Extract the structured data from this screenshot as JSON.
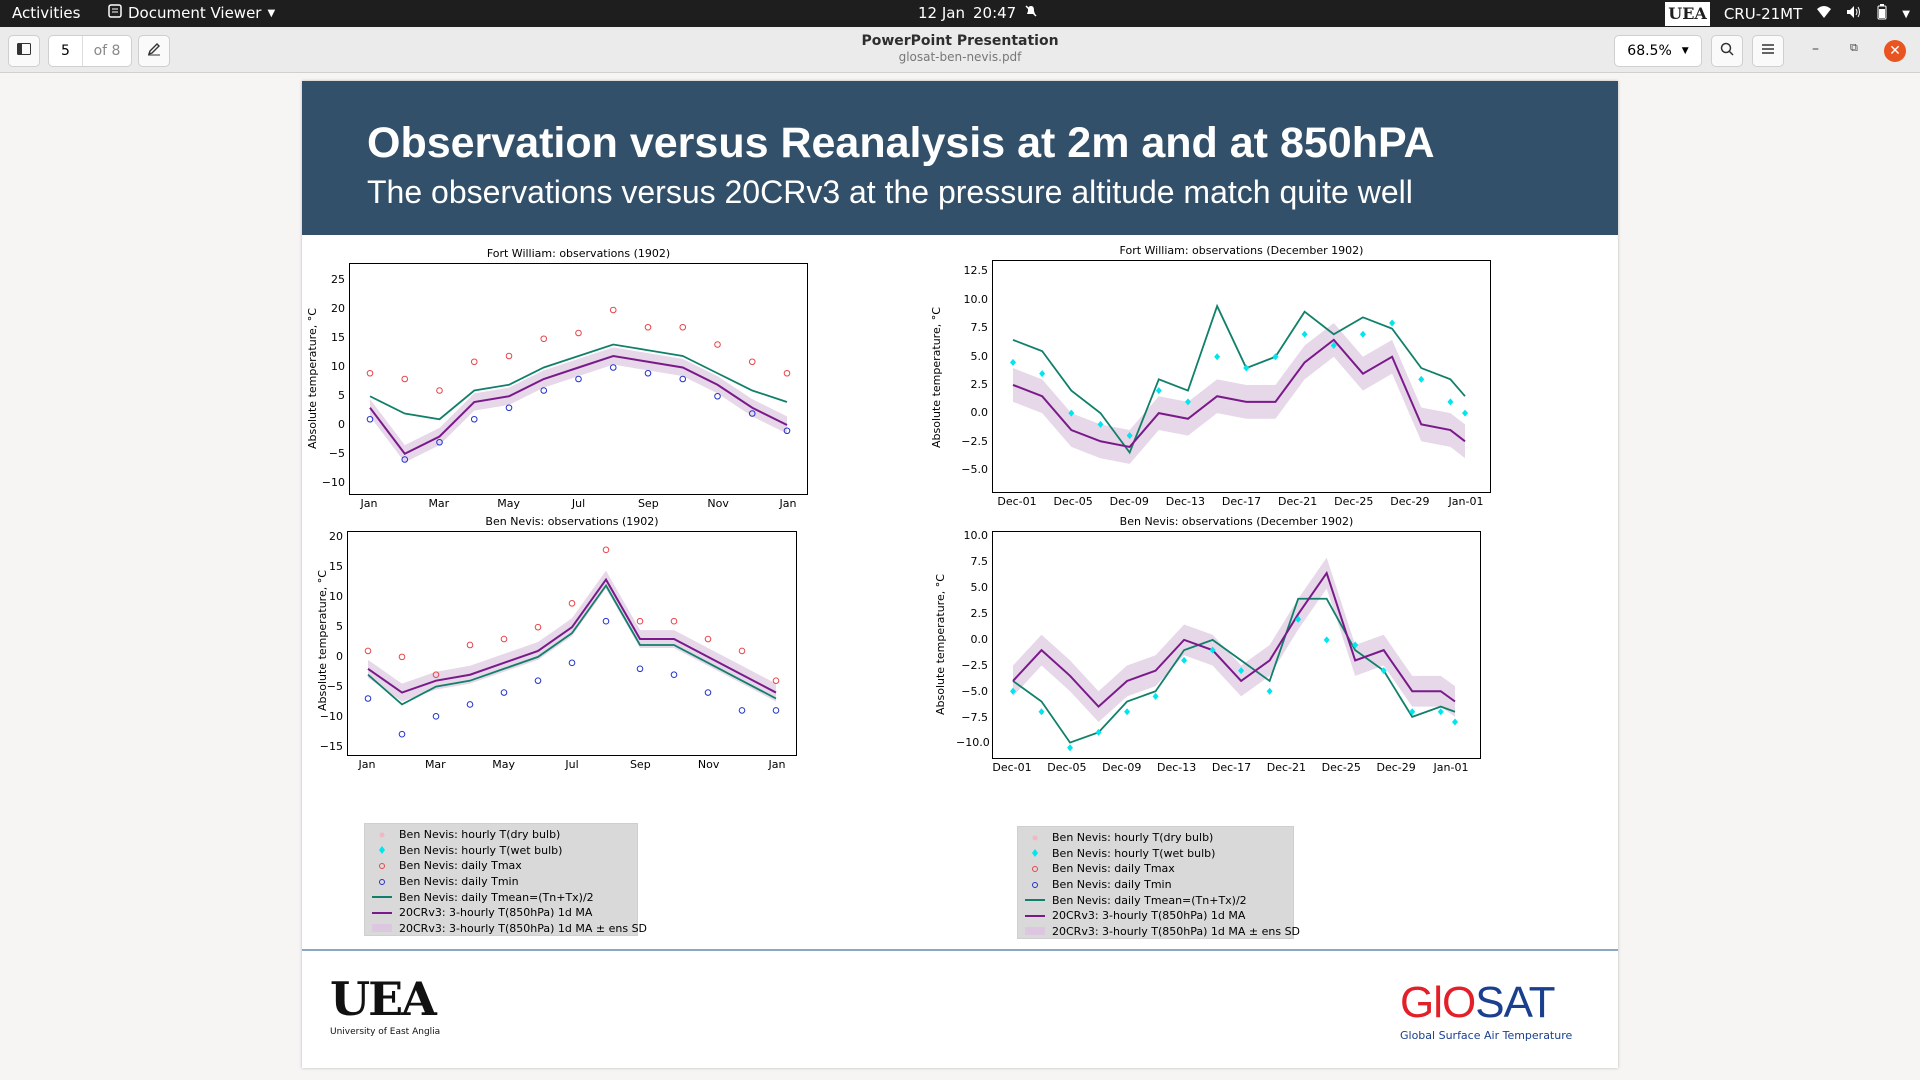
{
  "system_bar": {
    "activities": "Activities",
    "app_name": "Document Viewer",
    "date": "12 Jan",
    "time": "20:47",
    "uea_badge": "UEA",
    "hostname": "CRU-21MT"
  },
  "header": {
    "page_current": "5",
    "page_total": "of 8",
    "doc_title": "PowerPoint Presentation",
    "doc_file": "glosat-ben-nevis.pdf",
    "zoom": "68.5%"
  },
  "slide": {
    "title": "Observation versus Reanalysis at 2m and at 850hPA",
    "subtitle": "The observations versus 20CRv3 at the pressure altitude match quite well",
    "uea_logo": "UEA",
    "uea_name": "University of East Anglia",
    "glosat_logo": "GlOSAT",
    "glosat_name": "Global Surface Air Temperature"
  },
  "legend": {
    "items": [
      "Ben Nevis: hourly T(dry bulb)",
      "Ben Nevis: hourly T(wet bulb)",
      "Ben Nevis: daily Tmax",
      "Ben Nevis: daily Tmin",
      "Ben Nevis: daily Tmean=(Tn+Tx)/2",
      "20CRv3: 3-hourly T(850hPa) 1d MA",
      "20CRv3: 3-hourly T(850hPa) 1d MA ± ens SD"
    ]
  },
  "colors": {
    "banner": "#33506a",
    "dry_bulb": "#f4b6c2",
    "wet_bulb": "#00e5ee",
    "tmax": "#e8454a",
    "tmin": "#2233cc",
    "tmean": "#11806a",
    "reanalysis": "#7a1a8a",
    "ens_sd": "#dcc6e0"
  },
  "chart_data": [
    {
      "type": "line",
      "title": "Fort William: observations (1902)",
      "ylabel": "Absolute temperature, °C",
      "xlabel": "",
      "ylim": [
        -12,
        28
      ],
      "yticks": [
        "25",
        "20",
        "15",
        "10",
        "5",
        "0",
        "−5",
        "−10"
      ],
      "xticks": [
        "Jan",
        "Mar",
        "May",
        "Jul",
        "Sep",
        "Nov",
        "Jan"
      ],
      "x": [
        0,
        1,
        2,
        3,
        4,
        5,
        6,
        7,
        8,
        9,
        10,
        11,
        12
      ],
      "series": [
        {
          "name": "Ben Nevis: daily Tmax",
          "values": [
            9,
            8,
            6,
            11,
            12,
            15,
            16,
            20,
            17,
            17,
            14,
            11,
            9
          ]
        },
        {
          "name": "Ben Nevis: daily Tmean=(Tn+Tx)/2",
          "values": [
            5,
            2,
            1,
            6,
            7,
            10,
            12,
            14,
            13,
            12,
            9,
            6,
            4
          ]
        },
        {
          "name": "Ben Nevis: daily Tmin",
          "values": [
            1,
            -6,
            -3,
            1,
            3,
            6,
            8,
            10,
            9,
            8,
            5,
            2,
            -1
          ]
        },
        {
          "name": "20CRv3: 3-hourly T(850hPa) 1d MA",
          "values": [
            3,
            -5,
            -2,
            4,
            5,
            8,
            10,
            12,
            11,
            10,
            7,
            3,
            0
          ]
        }
      ],
      "grid": false
    },
    {
      "type": "line",
      "title": "Fort William: observations (December 1902)",
      "ylabel": "Absolute temperature, °C",
      "xlabel": "",
      "ylim": [
        -7,
        13.5
      ],
      "yticks": [
        "12.5",
        "10.0",
        "7.5",
        "5.0",
        "2.5",
        "0.0",
        "−2.5",
        "−5.0"
      ],
      "xticks": [
        "Dec-01",
        "Dec-05",
        "Dec-09",
        "Dec-13",
        "Dec-17",
        "Dec-21",
        "Dec-25",
        "Dec-29",
        "Jan-01"
      ],
      "x": [
        1,
        3,
        5,
        7,
        9,
        11,
        13,
        15,
        17,
        19,
        21,
        23,
        25,
        27,
        29,
        31,
        32
      ],
      "series": [
        {
          "name": "Ben Nevis: daily Tmean=(Tn+Tx)/2",
          "values": [
            6.5,
            5.5,
            2,
            0,
            -3.5,
            3,
            2,
            9.5,
            4,
            5,
            9,
            7,
            8.5,
            7.5,
            4,
            3,
            1.5
          ]
        },
        {
          "name": "20CRv3: 3-hourly T(850hPa) 1d MA",
          "values": [
            2.5,
            1.5,
            -1.5,
            -2.5,
            -3,
            0,
            -0.5,
            1.5,
            1,
            1,
            4.5,
            6.5,
            3.5,
            5,
            -1,
            -1.5,
            -2.5
          ]
        },
        {
          "name": "Ben Nevis: hourly T(wet bulb)",
          "values": [
            4.5,
            3.5,
            0,
            -1,
            -2,
            2,
            1,
            5,
            4,
            5,
            7,
            6,
            7,
            8,
            3,
            1,
            0
          ]
        }
      ],
      "grid": false
    },
    {
      "type": "line",
      "title": "Ben Nevis: observations (1902)",
      "ylabel": "Absolute temperature, °C",
      "xlabel": "",
      "ylim": [
        -16.5,
        21
      ],
      "yticks": [
        "20",
        "15",
        "10",
        "5",
        "0",
        "−5",
        "−10",
        "−15"
      ],
      "xticks": [
        "Jan",
        "Mar",
        "May",
        "Jul",
        "Sep",
        "Nov",
        "Jan"
      ],
      "x": [
        0,
        1,
        2,
        3,
        4,
        5,
        6,
        7,
        8,
        9,
        10,
        11,
        12
      ],
      "series": [
        {
          "name": "Ben Nevis: daily Tmax",
          "values": [
            1,
            0,
            -3,
            2,
            3,
            5,
            9,
            18,
            6,
            6,
            3,
            1,
            -4
          ]
        },
        {
          "name": "Ben Nevis: daily Tmean=(Tn+Tx)/2",
          "values": [
            -3,
            -8,
            -5,
            -4,
            -2,
            0,
            4,
            12,
            2,
            2,
            -1,
            -4,
            -7
          ]
        },
        {
          "name": "Ben Nevis: daily Tmin",
          "values": [
            -7,
            -13,
            -10,
            -8,
            -6,
            -4,
            -1,
            6,
            -2,
            -3,
            -6,
            -9,
            -9
          ]
        },
        {
          "name": "20CRv3: 3-hourly T(850hPa) 1d MA",
          "values": [
            -2,
            -6,
            -4,
            -3,
            -1,
            1,
            5,
            13,
            3,
            3,
            0,
            -3,
            -6
          ]
        }
      ],
      "grid": false
    },
    {
      "type": "line",
      "title": "Ben Nevis: observations (December 1902)",
      "ylabel": "Absolute temperature, °C",
      "xlabel": "",
      "ylim": [
        -11.5,
        10.5
      ],
      "yticks": [
        "10.0",
        "7.5",
        "5.0",
        "2.5",
        "0.0",
        "−2.5",
        "−5.0",
        "−7.5",
        "−10.0"
      ],
      "xticks": [
        "Dec-01",
        "Dec-05",
        "Dec-09",
        "Dec-13",
        "Dec-17",
        "Dec-21",
        "Dec-25",
        "Dec-29",
        "Jan-01"
      ],
      "x": [
        1,
        3,
        5,
        7,
        9,
        11,
        13,
        15,
        17,
        19,
        21,
        23,
        25,
        27,
        29,
        31,
        32
      ],
      "series": [
        {
          "name": "Ben Nevis: daily Tmean=(Tn+Tx)/2",
          "values": [
            -4,
            -6,
            -10,
            -9,
            -6,
            -5,
            -1,
            0,
            -2,
            -4,
            4,
            4,
            -1,
            -3,
            -7.5,
            -6.5,
            -7
          ]
        },
        {
          "name": "20CRv3: 3-hourly T(850hPa) 1d MA",
          "values": [
            -4,
            -1,
            -3.5,
            -6.5,
            -4,
            -3,
            0,
            -1,
            -4,
            -2,
            2.5,
            6.5,
            -2,
            -1,
            -5,
            -5,
            -6
          ]
        },
        {
          "name": "Ben Nevis: hourly T(wet bulb)",
          "values": [
            -5,
            -7,
            -10.5,
            -9,
            -7,
            -5.5,
            -2,
            -1,
            -3,
            -5,
            2,
            0,
            -0.5,
            -3,
            -7,
            -7,
            -8
          ]
        }
      ],
      "grid": false
    }
  ]
}
